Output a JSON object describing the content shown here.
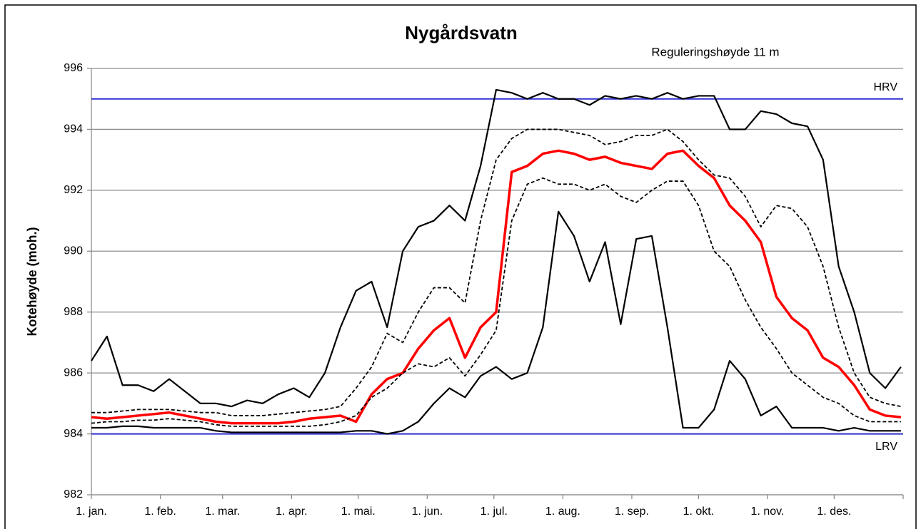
{
  "chart_data": {
    "type": "line",
    "title": "Nygårdsvatn",
    "annotation": "Reguleringshøyde  11 m",
    "ylabel": "Kotehøyde (moh.)",
    "x": [
      0,
      7,
      14,
      21,
      28,
      35,
      42,
      49,
      56,
      63,
      70,
      77,
      84,
      91,
      98,
      105,
      112,
      119,
      126,
      133,
      140,
      147,
      154,
      161,
      168,
      175,
      182,
      189,
      196,
      203,
      210,
      217,
      224,
      231,
      238,
      245,
      252,
      259,
      266,
      273,
      280,
      287,
      294,
      301,
      308,
      315,
      322,
      329,
      336,
      343,
      350,
      357,
      364
    ],
    "xlim": [
      0,
      365
    ],
    "xticks": [
      {
        "value": 0,
        "label": "1. jan."
      },
      {
        "value": 31,
        "label": "1. feb."
      },
      {
        "value": 59,
        "label": "1. mar."
      },
      {
        "value": 90,
        "label": "1. apr."
      },
      {
        "value": 120,
        "label": "1. mai."
      },
      {
        "value": 151,
        "label": "1. jun."
      },
      {
        "value": 181,
        "label": "1. jul."
      },
      {
        "value": 212,
        "label": "1. aug."
      },
      {
        "value": 243,
        "label": "1. sep."
      },
      {
        "value": 273,
        "label": "1. okt."
      },
      {
        "value": 304,
        "label": "1. nov."
      },
      {
        "value": 334,
        "label": "1. des."
      },
      {
        "value": 365,
        "label": ""
      }
    ],
    "ylim": [
      982,
      996
    ],
    "yticks": [
      982,
      984,
      986,
      988,
      990,
      992,
      994,
      996
    ],
    "grid": true,
    "reference_lines": [
      {
        "label": "HRV",
        "value": 995,
        "color": "#3232d2"
      },
      {
        "label": "LRV",
        "value": 984,
        "color": "#3232d2"
      }
    ],
    "series": [
      {
        "color": "#000000",
        "dash": false,
        "width": 2.2,
        "values": [
          986.4,
          987.2,
          985.6,
          985.6,
          985.4,
          985.8,
          985.4,
          985.0,
          985.0,
          984.9,
          985.1,
          985.0,
          985.3,
          985.5,
          985.2,
          986.0,
          987.5,
          988.7,
          989.0,
          987.5,
          990.0,
          990.8,
          991.0,
          991.5,
          991.0,
          992.8,
          995.3,
          995.2,
          995.0,
          995.2,
          995.0,
          995.0,
          994.8,
          995.1,
          995.0,
          995.1,
          995.0,
          995.2,
          995.0,
          995.1,
          995.1,
          994.0,
          994.0,
          994.6,
          994.5,
          994.2,
          994.1,
          993.0,
          989.5,
          988.0,
          986.0,
          985.5,
          986.2
        ]
      },
      {
        "color": "#000000",
        "dash": true,
        "width": 1.8,
        "values": [
          984.7,
          984.7,
          984.75,
          984.8,
          984.8,
          984.8,
          984.75,
          984.7,
          984.7,
          984.6,
          984.6,
          984.6,
          984.65,
          984.7,
          984.75,
          984.8,
          984.9,
          985.5,
          986.2,
          987.3,
          987.0,
          988.0,
          988.8,
          988.8,
          988.3,
          991.0,
          993.0,
          993.7,
          994.0,
          994.0,
          994.0,
          993.9,
          993.8,
          993.5,
          993.6,
          993.8,
          993.8,
          994.0,
          993.6,
          993.0,
          992.5,
          992.4,
          991.8,
          990.8,
          991.5,
          991.4,
          990.8,
          989.5,
          987.5,
          986.0,
          985.2,
          985.0,
          984.9
        ]
      },
      {
        "color": "#ff0000",
        "dash": false,
        "width": 3.5,
        "values": [
          984.55,
          984.5,
          984.55,
          984.6,
          984.65,
          984.7,
          984.6,
          984.5,
          984.4,
          984.35,
          984.35,
          984.35,
          984.35,
          984.4,
          984.5,
          984.55,
          984.6,
          984.4,
          985.3,
          985.8,
          986.0,
          986.8,
          987.4,
          987.8,
          986.5,
          987.5,
          988.0,
          992.6,
          992.8,
          993.2,
          993.3,
          993.2,
          993.0,
          993.1,
          992.9,
          992.8,
          992.7,
          993.2,
          993.3,
          992.8,
          992.4,
          991.5,
          991.0,
          990.3,
          988.5,
          987.8,
          987.4,
          986.5,
          986.2,
          985.6,
          984.8,
          984.6,
          984.55
        ]
      },
      {
        "color": "#000000",
        "dash": true,
        "width": 1.8,
        "values": [
          984.35,
          984.4,
          984.4,
          984.45,
          984.45,
          984.5,
          984.45,
          984.4,
          984.3,
          984.25,
          984.25,
          984.25,
          984.25,
          984.25,
          984.25,
          984.3,
          984.4,
          984.6,
          985.2,
          985.5,
          986.0,
          986.3,
          986.2,
          986.5,
          985.9,
          986.6,
          987.4,
          991.0,
          992.2,
          992.4,
          992.2,
          992.2,
          992.0,
          992.2,
          991.8,
          991.6,
          992.0,
          992.3,
          992.3,
          991.5,
          990.0,
          989.5,
          988.4,
          987.5,
          986.8,
          986.0,
          985.6,
          985.2,
          985.0,
          984.6,
          984.4,
          984.4,
          984.4
        ]
      },
      {
        "color": "#000000",
        "dash": false,
        "width": 2.2,
        "values": [
          984.2,
          984.2,
          984.25,
          984.25,
          984.2,
          984.2,
          984.2,
          984.2,
          984.1,
          984.05,
          984.05,
          984.05,
          984.05,
          984.05,
          984.05,
          984.05,
          984.05,
          984.1,
          984.1,
          984.0,
          984.1,
          984.4,
          985.0,
          985.5,
          985.2,
          985.9,
          986.2,
          985.8,
          986.0,
          987.5,
          991.3,
          990.5,
          989.0,
          990.3,
          987.6,
          990.4,
          990.5,
          987.5,
          984.2,
          984.2,
          984.8,
          986.4,
          985.8,
          984.6,
          984.9,
          984.2,
          984.2,
          984.2,
          984.1,
          984.2,
          984.1,
          984.1,
          984.1
        ]
      }
    ]
  }
}
